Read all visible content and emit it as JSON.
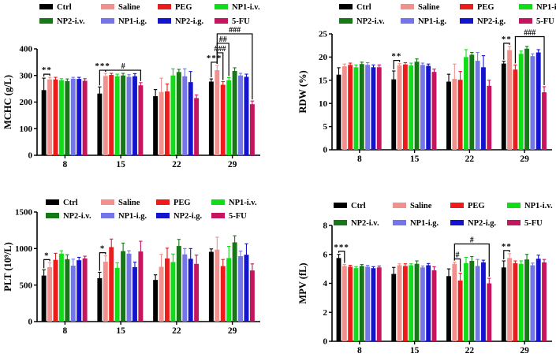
{
  "figure": {
    "background": "#ffffff",
    "description": "Hematology parameters bar charts"
  },
  "groups": [
    {
      "name": "Ctrl",
      "color": "#000000"
    },
    {
      "name": "Saline",
      "color": "#F2908E"
    },
    {
      "name": "PEG",
      "color": "#EE1B1B"
    },
    {
      "name": "NP1-i.v.",
      "color": "#11DC18"
    },
    {
      "name": "NP2-i.v.",
      "color": "#187818"
    },
    {
      "name": "NP1-i.g.",
      "color": "#7375E8"
    },
    {
      "name": "NP2-i.g.",
      "color": "#1414CE"
    },
    {
      "name": "5-FU",
      "color": "#C5155F"
    }
  ],
  "chart_data": [
    {
      "type": "bar",
      "id": "mchc",
      "title": "",
      "xlabel": "",
      "ylabel": "MCHC (g/L)",
      "ylim": [
        0,
        400
      ],
      "yticks": [
        0,
        100,
        200,
        300,
        400
      ],
      "categories": [
        "8",
        "15",
        "22",
        "29"
      ],
      "legend_position": "above",
      "grid": false,
      "series": [
        {
          "name": "Ctrl",
          "values": [
            245,
            232,
            222,
            277
          ],
          "errors": [
            45,
            25,
            25,
            10
          ]
        },
        {
          "name": "Saline",
          "values": [
            285,
            298,
            238,
            320
          ],
          "errors": [
            8,
            10,
            52,
            18
          ]
        },
        {
          "name": "PEG",
          "values": [
            285,
            302,
            240,
            265
          ],
          "errors": [
            8,
            6,
            28,
            12
          ]
        },
        {
          "name": "NP1-i.v.",
          "values": [
            282,
            297,
            300,
            282
          ],
          "errors": [
            6,
            8,
            25,
            10
          ]
        },
        {
          "name": "NP2-i.v.",
          "values": [
            279,
            300,
            313,
            317
          ],
          "errors": [
            8,
            8,
            10,
            12
          ]
        },
        {
          "name": "NP1-i.g.",
          "values": [
            288,
            295,
            297,
            300
          ],
          "errors": [
            5,
            8,
            28,
            8
          ]
        },
        {
          "name": "NP2-i.g.",
          "values": [
            287,
            297,
            275,
            295
          ],
          "errors": [
            6,
            10,
            40,
            10
          ]
        },
        {
          "name": "5-FU",
          "values": [
            280,
            263,
            215,
            192
          ],
          "errors": [
            8,
            10,
            12,
            12
          ]
        }
      ],
      "brackets": [
        {
          "category": 0,
          "from": "Ctrl",
          "to": "Saline",
          "label": "**",
          "level": 0
        },
        {
          "category": 1,
          "from": "Ctrl",
          "to": "Saline",
          "label": "***",
          "level": 0
        },
        {
          "category": 1,
          "from": "Saline",
          "to": "5-FU",
          "label": "#",
          "level": 0
        },
        {
          "category": 3,
          "from": "Ctrl",
          "to": "Saline",
          "label": "***",
          "level": 0
        },
        {
          "category": 3,
          "from": "Saline",
          "to": "PEG",
          "label": "###",
          "level": 1
        },
        {
          "category": 3,
          "from": "Saline",
          "to": "NP1-i.v.",
          "label": "##",
          "level": 2
        },
        {
          "category": 3,
          "from": "Saline",
          "to": "5-FU",
          "label": "###",
          "level": 3
        }
      ]
    },
    {
      "type": "bar",
      "id": "rdw",
      "title": "",
      "xlabel": "",
      "ylabel": "RDW (%)",
      "ylim": [
        0,
        25
      ],
      "yticks": [
        0,
        5,
        10,
        15,
        20,
        25
      ],
      "categories": [
        "8",
        "15",
        "22",
        "29"
      ],
      "legend_position": "above",
      "grid": false,
      "series": [
        {
          "name": "Ctrl",
          "values": [
            16.2,
            15.2,
            14.7,
            18.6
          ],
          "errors": [
            1.5,
            1.8,
            1.6,
            0.5
          ]
        },
        {
          "name": "Saline",
          "values": [
            18.0,
            18.2,
            15.3,
            21.5
          ],
          "errors": [
            0.5,
            0.4,
            3.2,
            0.8
          ]
        },
        {
          "name": "PEG",
          "values": [
            18.3,
            18.4,
            15.1,
            17.3
          ],
          "errors": [
            0.4,
            0.4,
            1.8,
            1.0
          ]
        },
        {
          "name": "NP1-i.v.",
          "values": [
            17.8,
            18.2,
            20.0,
            20.7
          ],
          "errors": [
            0.5,
            0.5,
            1.6,
            0.6
          ]
        },
        {
          "name": "NP2-i.v.",
          "values": [
            18.5,
            19.0,
            20.5,
            21.8
          ],
          "errors": [
            0.4,
            0.6,
            0.5,
            0.5
          ]
        },
        {
          "name": "NP1-i.g.",
          "values": [
            18.3,
            18.3,
            19.2,
            20.2
          ],
          "errors": [
            0.5,
            0.4,
            1.8,
            0.5
          ]
        },
        {
          "name": "NP2-i.g.",
          "values": [
            17.8,
            18.1,
            17.8,
            21.0
          ],
          "errors": [
            0.5,
            0.4,
            2.5,
            0.6
          ]
        },
        {
          "name": "5-FU",
          "values": [
            17.8,
            16.8,
            13.8,
            12.4
          ],
          "errors": [
            0.5,
            0.6,
            1.2,
            1.2
          ]
        }
      ],
      "brackets": [
        {
          "category": 1,
          "from": "Ctrl",
          "to": "Saline",
          "label": "**",
          "level": 0
        },
        {
          "category": 3,
          "from": "Ctrl",
          "to": "Saline",
          "label": "**",
          "level": 0
        },
        {
          "category": 3,
          "from": "PEG",
          "to": "5-FU",
          "label": "###",
          "level": 0.7
        }
      ]
    },
    {
      "type": "bar",
      "id": "plt",
      "title": "",
      "xlabel": "",
      "ylabel": "PLT (10⁹/L)",
      "ylim": [
        0,
        1500
      ],
      "yticks": [
        0,
        500,
        1000,
        1500
      ],
      "categories": [
        "8",
        "15",
        "22",
        "29"
      ],
      "legend_position": "inside-top",
      "grid": false,
      "series": [
        {
          "name": "Ctrl",
          "values": [
            630,
            595,
            570,
            955
          ],
          "errors": [
            80,
            80,
            70,
            40
          ]
        },
        {
          "name": "Saline",
          "values": [
            745,
            820,
            750,
            985
          ],
          "errors": [
            60,
            80,
            170,
            170
          ]
        },
        {
          "name": "PEG",
          "values": [
            845,
            1020,
            865,
            760
          ],
          "errors": [
            90,
            110,
            140,
            90
          ]
        },
        {
          "name": "NP1-i.v.",
          "values": [
            930,
            735,
            815,
            870
          ],
          "errors": [
            40,
            70,
            110,
            160
          ]
        },
        {
          "name": "NP2-i.v.",
          "values": [
            855,
            965,
            1035,
            1085
          ],
          "errors": [
            60,
            110,
            90,
            90
          ]
        },
        {
          "name": "NP1-i.g.",
          "values": [
            765,
            930,
            920,
            895
          ],
          "errors": [
            90,
            40,
            80,
            70
          ]
        },
        {
          "name": "NP2-i.g.",
          "values": [
            840,
            745,
            860,
            915
          ],
          "errors": [
            40,
            70,
            140,
            150
          ]
        },
        {
          "name": "5-FU",
          "values": [
            865,
            960,
            790,
            700
          ],
          "errors": [
            30,
            140,
            120,
            90
          ]
        }
      ],
      "brackets": [
        {
          "category": 0,
          "from": "Ctrl",
          "to": "Saline",
          "label": "*",
          "level": 0
        },
        {
          "category": 1,
          "from": "Ctrl",
          "to": "Saline",
          "label": "*",
          "level": 0
        }
      ]
    },
    {
      "type": "bar",
      "id": "mpv",
      "title": "",
      "xlabel": "",
      "ylabel": "MPV (fL)",
      "ylim": [
        0,
        8
      ],
      "yticks": [
        0,
        2,
        4,
        6,
        8
      ],
      "categories": [
        "8",
        "15",
        "22",
        "29"
      ],
      "legend_position": "inside-top",
      "grid": false,
      "series": [
        {
          "name": "Ctrl",
          "values": [
            5.75,
            4.65,
            4.5,
            5.1
          ],
          "errors": [
            0.25,
            0.45,
            0.5,
            0.45
          ]
        },
        {
          "name": "Saline",
          "values": [
            5.2,
            5.25,
            5.35,
            5.75
          ],
          "errors": [
            0.1,
            0.1,
            0.12,
            0.3
          ]
        },
        {
          "name": "PEG",
          "values": [
            5.15,
            5.2,
            4.2,
            5.4
          ],
          "errors": [
            0.1,
            0.15,
            0.5,
            0.15
          ]
        },
        {
          "name": "NP1-i.v.",
          "values": [
            5.05,
            5.25,
            5.4,
            5.35
          ],
          "errors": [
            0.1,
            0.1,
            0.4,
            0.2
          ]
        },
        {
          "name": "NP2-i.v.",
          "values": [
            5.2,
            5.35,
            5.55,
            5.65
          ],
          "errors": [
            0.1,
            0.2,
            0.3,
            0.35
          ]
        },
        {
          "name": "NP1-i.g.",
          "values": [
            5.15,
            5.1,
            5.2,
            5.25
          ],
          "errors": [
            0.1,
            0.1,
            0.45,
            0.15
          ]
        },
        {
          "name": "NP2-i.g.",
          "values": [
            5.05,
            5.25,
            5.45,
            5.7
          ],
          "errors": [
            0.1,
            0.12,
            0.15,
            0.25
          ]
        },
        {
          "name": "5-FU",
          "values": [
            5.1,
            4.9,
            4.0,
            5.45
          ],
          "errors": [
            0.1,
            0.25,
            0.35,
            0.2
          ]
        }
      ],
      "brackets": [
        {
          "category": 0,
          "from": "Ctrl",
          "to": "Saline",
          "label": "***",
          "level": 0
        },
        {
          "category": 2,
          "from": "Saline",
          "to": "PEG",
          "label": "#",
          "level": 0
        },
        {
          "category": 2,
          "from": "Saline",
          "to": "5-FU",
          "label": "#",
          "level": 1
        },
        {
          "category": 3,
          "from": "Ctrl",
          "to": "Saline",
          "label": "**",
          "level": 0
        }
      ]
    }
  ]
}
